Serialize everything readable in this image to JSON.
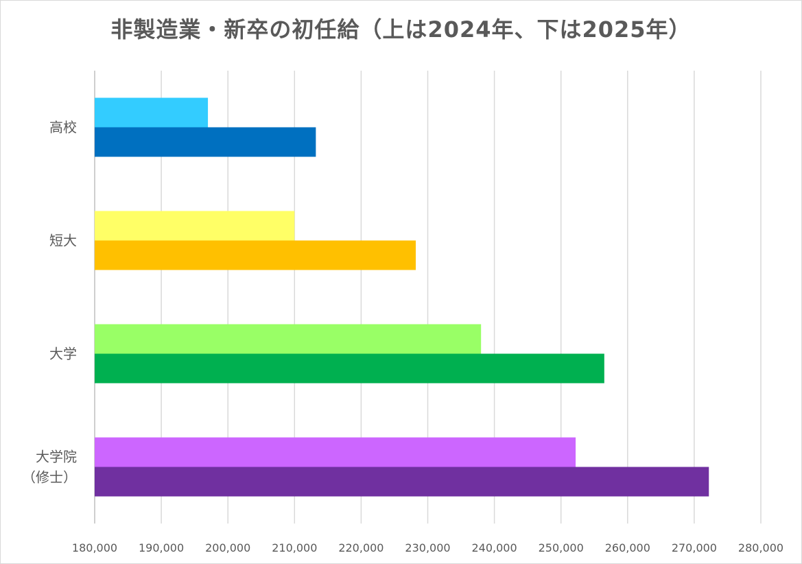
{
  "chart_data": {
    "type": "bar",
    "orientation": "horizontal",
    "title": "非製造業・新卒の初任給（上は2024年、下は2025年）",
    "categories": [
      "高校",
      "短大",
      "大学",
      "大学院（修士）"
    ],
    "category_label_lines": [
      [
        "高校"
      ],
      [
        "短大"
      ],
      [
        "大学"
      ],
      [
        "大学院",
        "（修士）"
      ]
    ],
    "series": [
      {
        "name": "2024年",
        "values": [
          197000,
          210000,
          238000,
          252200
        ]
      },
      {
        "name": "2025年",
        "values": [
          213200,
          228200,
          256500,
          272200
        ]
      }
    ],
    "colors": [
      [
        "#33CCFF",
        "#0070C0"
      ],
      [
        "#FFFF66",
        "#FFC000"
      ],
      [
        "#99FF66",
        "#00B050"
      ],
      [
        "#CC66FF",
        "#7030A0"
      ]
    ],
    "xlim": [
      180000,
      280000
    ],
    "xticks": [
      180000,
      190000,
      200000,
      210000,
      220000,
      230000,
      240000,
      250000,
      260000,
      270000,
      280000
    ],
    "xtick_labels": [
      "180,000",
      "190,000",
      "200,000",
      "210,000",
      "220,000",
      "230,000",
      "240,000",
      "250,000",
      "260,000",
      "270,000",
      "280,000"
    ],
    "grid": true,
    "legend": "none"
  }
}
